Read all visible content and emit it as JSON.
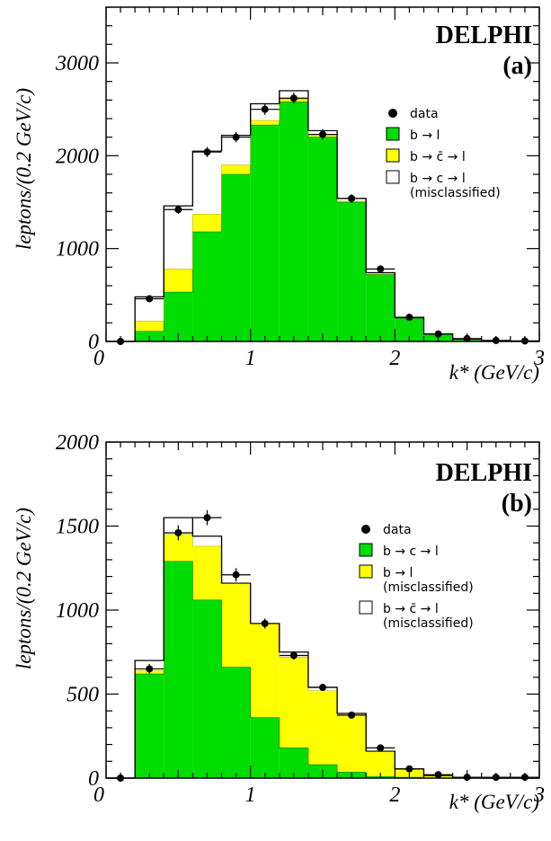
{
  "chart_data": [
    {
      "type": "bar",
      "title": "DELPHI",
      "panel": "(a)",
      "xlabel": "k* (GeV/c)",
      "ylabel": "leptons/(0.2 GeV/c)",
      "xlim": [
        0,
        3
      ],
      "ylim": [
        0,
        3600
      ],
      "xticks": [
        "0",
        "1",
        "2",
        "3"
      ],
      "yticks": [
        {
          "v": 0,
          "t": "0"
        },
        {
          "v": 1000,
          "t": "1000"
        },
        {
          "v": 2000,
          "t": "2000"
        },
        {
          "v": 3000,
          "t": "3000"
        }
      ],
      "bin_edges": [
        0,
        0.2,
        0.4,
        0.6,
        0.8,
        1.0,
        1.2,
        1.4,
        1.6,
        1.8,
        2.0,
        2.2,
        2.4,
        2.6,
        2.8,
        3.0
      ],
      "series": [
        {
          "name": "b → l",
          "color": "#00dd00",
          "values": [
            0,
            110,
            530,
            1180,
            1800,
            2330,
            2580,
            2200,
            1500,
            720,
            250,
            80,
            25,
            10,
            5
          ]
        },
        {
          "name": "b → c̄ → l",
          "color": "#ffff00",
          "values": [
            0,
            110,
            250,
            190,
            100,
            50,
            30,
            20,
            10,
            5,
            5,
            0,
            0,
            0,
            0
          ]
        },
        {
          "name": "b → c → l",
          "sub": "(misclassified)",
          "color": "#ffffff",
          "values": [
            0,
            260,
            680,
            680,
            320,
            180,
            90,
            50,
            30,
            15,
            5,
            0,
            0,
            0,
            0
          ]
        }
      ],
      "data_points": {
        "name": "data",
        "x": [
          0.1,
          0.3,
          0.5,
          0.7,
          0.9,
          1.1,
          1.3,
          1.5,
          1.7,
          1.9,
          2.1,
          2.3,
          2.5,
          2.7,
          2.9
        ],
        "y": [
          0,
          460,
          1420,
          2040,
          2200,
          2500,
          2620,
          2230,
          1540,
          780,
          260,
          80,
          30,
          10,
          5
        ],
        "yerr": [
          0,
          25,
          45,
          55,
          55,
          60,
          60,
          55,
          45,
          30,
          18,
          10,
          6,
          4,
          3
        ]
      },
      "legend_position": "right"
    },
    {
      "type": "bar",
      "title": "DELPHI",
      "panel": "(b)",
      "xlabel": "k* (GeV/c)",
      "ylabel": "leptons/(0.2 GeV/c)",
      "xlim": [
        0,
        3
      ],
      "ylim": [
        0,
        2000
      ],
      "xticks": [
        "0",
        "1",
        "2",
        "3"
      ],
      "yticks": [
        {
          "v": 0,
          "t": "0"
        },
        {
          "v": 500,
          "t": "500"
        },
        {
          "v": 1000,
          "t": "1000"
        },
        {
          "v": 1500,
          "t": "1500"
        },
        {
          "v": 2000,
          "t": "2000"
        }
      ],
      "bin_edges": [
        0,
        0.2,
        0.4,
        0.6,
        0.8,
        1.0,
        1.2,
        1.4,
        1.6,
        1.8,
        2.0,
        2.2,
        2.4,
        2.6,
        2.8,
        3.0
      ],
      "series": [
        {
          "name": "b → c → l",
          "color": "#00dd00",
          "values": [
            0,
            620,
            1290,
            1060,
            660,
            360,
            180,
            80,
            35,
            10,
            5,
            0,
            0,
            0,
            0
          ]
        },
        {
          "name": "b → l",
          "sub": "(misclassified)",
          "color": "#ffff00",
          "values": [
            0,
            20,
            160,
            320,
            500,
            560,
            540,
            440,
            340,
            150,
            50,
            15,
            5,
            0,
            0
          ]
        },
        {
          "name": "b → c̄ → l",
          "sub": "(misclassified)",
          "color": "#ffffff",
          "values": [
            0,
            60,
            100,
            60,
            0,
            0,
            30,
            20,
            10,
            0,
            0,
            0,
            0,
            0,
            0
          ]
        }
      ],
      "data_points": {
        "name": "data",
        "x": [
          0.1,
          0.3,
          0.5,
          0.7,
          0.9,
          1.1,
          1.3,
          1.5,
          1.7,
          1.9,
          2.1,
          2.3,
          2.5,
          2.7,
          2.9
        ],
        "y": [
          0,
          650,
          1460,
          1550,
          1210,
          920,
          730,
          540,
          375,
          180,
          55,
          20,
          5,
          5,
          5
        ],
        "yerr": [
          0,
          30,
          45,
          45,
          40,
          30,
          25,
          20,
          18,
          12,
          8,
          5,
          3,
          3,
          3
        ]
      },
      "legend_position": "right"
    }
  ]
}
